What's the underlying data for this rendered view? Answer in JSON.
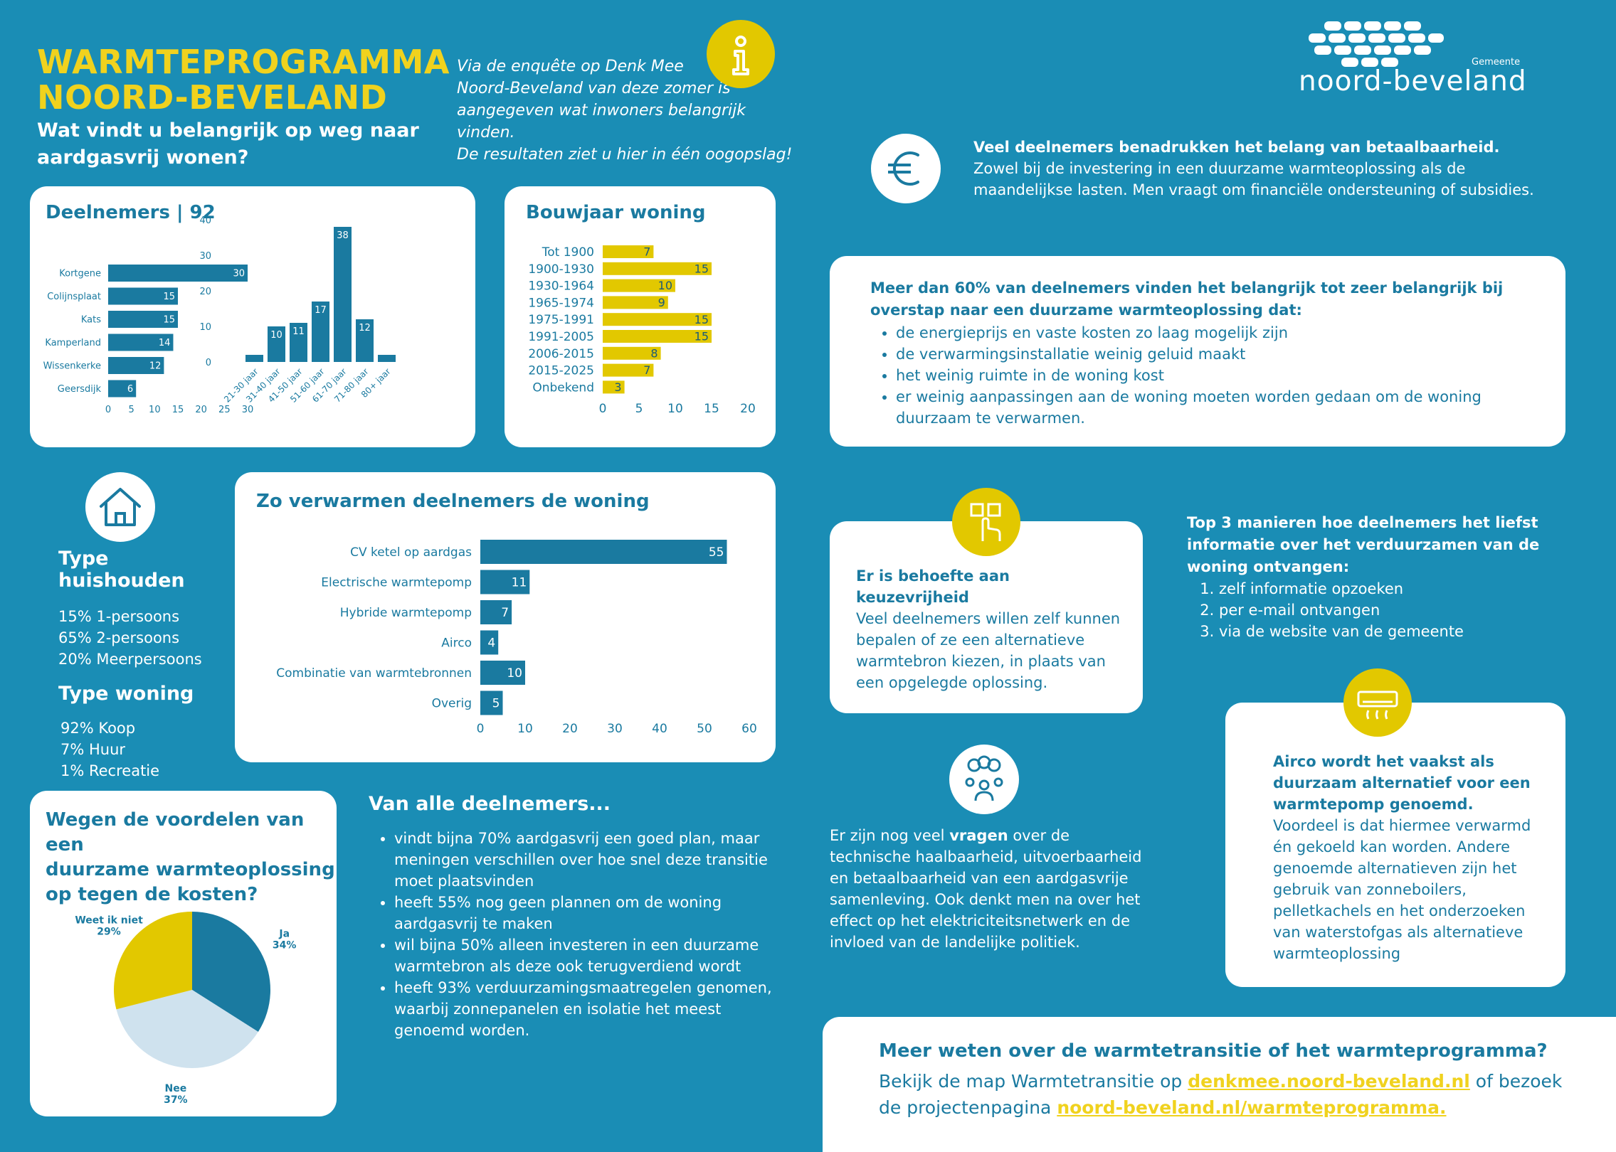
{
  "header": {
    "title_line1": "WARMTEPROGRAMMA",
    "title_line2": "NOORD-BEVELAND",
    "subtitle_line1": "Wat vindt u belangrijk op weg naar",
    "subtitle_line2": "aardgasvrij wonen?",
    "intro_lines": [
      "Via de enquête op Denk Mee",
      "Noord-Beveland van deze zomer is",
      "aangegeven wat inwoners belangrijk vinden.",
      "De resultaten ziet u hier in één oogopslag!"
    ],
    "logo_small": "Gemeente",
    "logo_text": "noord-beveland"
  },
  "deelnemers": {
    "title": "Deelnemers | 92"
  },
  "household": {
    "type_title": "Type huishouden",
    "type_items": [
      "15% 1-persoons",
      "65% 2-persoons",
      "20% Meerpersoons"
    ],
    "woning_title": "Type woning",
    "woning_items": [
      "92% Koop",
      "7% Huur",
      "1% Recreatie"
    ]
  },
  "heating": {
    "title": "Zo verwarmen deelnemers de woning"
  },
  "bouwjaar": {
    "title": "Bouwjaar woning"
  },
  "pie_title_lines": [
    "Wegen de voordelen van een",
    "duurzame warmteoplossing",
    "op tegen de kosten?"
  ],
  "van_alle": {
    "title": "Van alle deelnemers...",
    "items": [
      "vindt bijna 70% aardgasvrij een goed plan, maar meningen verschillen over hoe snel deze transitie moet plaatsvinden",
      "heeft 55% nog geen plannen om de woning aardgasvrij te maken",
      "wil bijna 50% alleen investeren in een duurzame warmtebron als deze ook terugverdiend wordt",
      "heeft 93% verduurzamingsmaatregelen genomen, waarbij zonnepanelen en isolatie het meest genoemd worden."
    ]
  },
  "betaalbaarheid": {
    "bold": "Veel deelnemers benadrukken het belang van betaalbaarheid.",
    "text": "Zowel bij de investering in een duurzame warmteoplossing als de maandelijkse lasten. Men vraagt om financiële ondersteuning of subsidies."
  },
  "meer_dan": {
    "title": "Meer dan 60% van deelnemers vinden het belangrijk tot zeer belangrijk bij overstap naar een duurzame warmteoplossing dat:",
    "items": [
      "de energieprijs en vaste kosten zo laag mogelijk zijn",
      "de verwarmingsinstallatie weinig geluid maakt",
      "het weinig ruimte in de woning kost",
      "er weinig aanpassingen aan de woning moeten worden gedaan om de woning duurzaam te verwarmen."
    ]
  },
  "keuze": {
    "title": "Er is behoefte aan keuzevrijheid",
    "text": "Veel deelnemers willen zelf kunnen bepalen of ze een alternatieve warmtebron kiezen, in plaats van een opgelegde oplossing."
  },
  "top3": {
    "title": "Top 3 manieren hoe deelnemers het liefst informatie over het verduurzamen van de woning ontvangen:",
    "items": [
      "zelf informatie opzoeken",
      "per e-mail ontvangen",
      "via de website van de gemeente"
    ]
  },
  "vragen": {
    "before": "Er zijn nog veel ",
    "bold": "vragen",
    "after": " over de technische haalbaarheid, uitvoerbaarheid en betaalbaarheid van een aardgasvrije samenleving. Ook denkt men na over het effect op het elektriciteitsnetwerk en de invloed van de landelijke politiek."
  },
  "airco": {
    "title": "Airco wordt het vaakst als duurzaam alternatief voor een warmtepomp genoemd.",
    "text": "Voordeel is dat hiermee verwarmd én gekoeld kan worden. Andere genoemde alternatieven zijn het gebruik van zonneboilers, pelletkachels en het onderzoeken van waterstofgas als alternatieve warmteoplossing"
  },
  "footer": {
    "title": "Meer weten over de warmtetransitie of het warmteprogramma?",
    "line1_before": "Bekijk de map Warmtetransitie op ",
    "link1": "denkmee.noord-beveland.nl",
    "line1_after": " of bezoek",
    "line2_before": "de projectenpagina ",
    "link2": "noord-beveland.nl/warmteprogramma."
  },
  "icons": {
    "info": "info-icon",
    "euro": "euro-icon",
    "house": "house-icon",
    "choice": "touch-choice-icon",
    "questions": "people-questions-icon",
    "airco": "airco-icon"
  },
  "colors": {
    "background": "#1a8db5",
    "bar_blue": "#1a7aa0",
    "yellow": "#e2c800",
    "pie_light": "#cfe2ee",
    "title_yellow": "#f0d21e"
  },
  "chart_data": [
    {
      "type": "bar",
      "orientation": "horizontal",
      "categories": [
        "Kortgene",
        "Colijnsplaat",
        "Kats",
        "Kamperland",
        "Wissenkerke",
        "Geersdijk"
      ],
      "values": [
        30,
        15,
        15,
        14,
        12,
        6
      ],
      "xticks": [
        "0",
        "5",
        "10",
        "15",
        "20",
        "25",
        "30"
      ],
      "xlim": [
        0,
        30
      ]
    },
    {
      "type": "bar",
      "categories": [
        "21-30 jaar",
        "31-40 jaar",
        "41-50 jaar",
        "51-60 jaar",
        "61-70 jaar",
        "71-80 jaar",
        "80+ jaar"
      ],
      "values": [
        2,
        10,
        11,
        17,
        38,
        12,
        2
      ],
      "labels": [
        "",
        "10",
        "11",
        "17",
        "38",
        "12",
        ""
      ],
      "yticks": [
        "0",
        "10",
        "20",
        "30",
        "40"
      ],
      "ylim": [
        0,
        40
      ]
    },
    {
      "type": "bar",
      "orientation": "horizontal",
      "categories": [
        "Tot 1900",
        "1900-1930",
        "1930-1964",
        "1965-1974",
        "1975-1991",
        "1991-2005",
        "2006-2015",
        "2015-2025",
        "Onbekend"
      ],
      "values": [
        7,
        15,
        10,
        9,
        15,
        15,
        8,
        7,
        3
      ],
      "xticks": [
        "0",
        "5",
        "10",
        "15",
        "20"
      ],
      "xlim": [
        0,
        20
      ]
    },
    {
      "type": "bar",
      "orientation": "horizontal",
      "categories": [
        "CV ketel op aardgas",
        "Electrische warmtepomp",
        "Hybride warmtepomp",
        "Airco",
        "Combinatie van warmtebronnen",
        "Overig"
      ],
      "values": [
        55,
        11,
        7,
        4,
        10,
        5
      ],
      "xticks": [
        "0",
        "10",
        "20",
        "30",
        "40",
        "50",
        "60"
      ],
      "xlim": [
        0,
        60
      ]
    },
    {
      "type": "pie",
      "categories": [
        "Ja",
        "Nee",
        "Weet ik niet"
      ],
      "values": [
        34,
        37,
        29
      ],
      "labels": [
        "34%",
        "37%",
        "29%"
      ]
    }
  ]
}
